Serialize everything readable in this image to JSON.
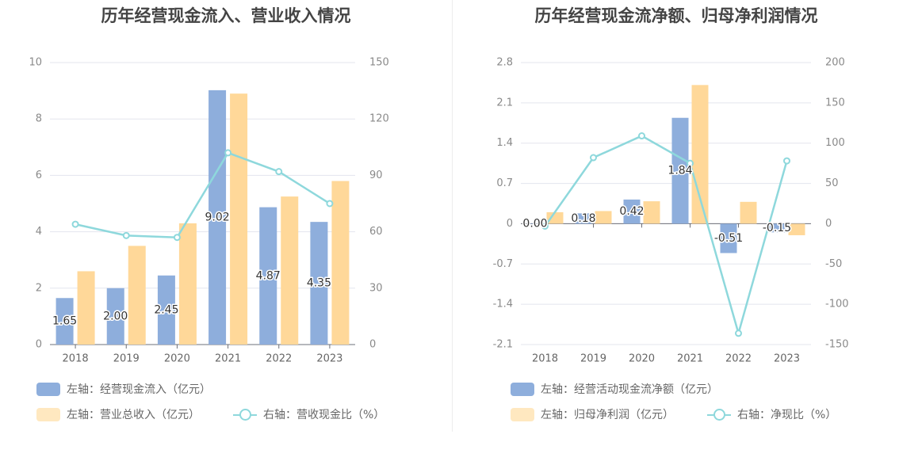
{
  "chart_data": [
    {
      "type": "bar+line",
      "title": "历年经营现金流入、营业收入情况",
      "categories": [
        "2018",
        "2019",
        "2020",
        "2021",
        "2022",
        "2023"
      ],
      "left_axis": {
        "min": 0,
        "max": 10,
        "ticks": [
          "0",
          "2",
          "4",
          "6",
          "8",
          "10"
        ]
      },
      "right_axis": {
        "min": 0,
        "max": 150,
        "ticks": [
          "0",
          "30",
          "60",
          "90",
          "120",
          "150"
        ]
      },
      "series": [
        {
          "name": "左轴：经营现金流入（亿元）",
          "type": "bar",
          "axis": "left",
          "color": "#8eaedc",
          "values": [
            1.65,
            2.0,
            2.45,
            9.02,
            4.87,
            4.35
          ],
          "labels": [
            "1.65",
            "2.00",
            "2.45",
            "9.02",
            "4.87",
            "4.35"
          ]
        },
        {
          "name": "左轴：营业总收入（亿元）",
          "type": "bar",
          "axis": "left",
          "color": "#ffd899",
          "values": [
            2.6,
            3.5,
            4.3,
            8.9,
            5.25,
            5.8
          ]
        },
        {
          "name": "右轴：营收现金比（%）",
          "type": "line",
          "axis": "right",
          "color": "#8ed8dc",
          "values": [
            64,
            58,
            57,
            102,
            92,
            75
          ]
        }
      ],
      "legend": "bottom"
    },
    {
      "type": "bar+line",
      "title": "历年经营现金流净额、归母净利润情况",
      "categories": [
        "2018",
        "2019",
        "2020",
        "2021",
        "2022",
        "2023"
      ],
      "left_axis": {
        "min": -2.1,
        "max": 2.8,
        "ticks": [
          "-2.1",
          "-1.4",
          "-0.7",
          "0",
          "0.7",
          "1.4",
          "2.1",
          "2.8"
        ]
      },
      "right_axis": {
        "min": -150,
        "max": 200,
        "ticks": [
          "-150",
          "-100",
          "-50",
          "0",
          "50",
          "100",
          "150",
          "200"
        ]
      },
      "series": [
        {
          "name": "左轴：经营活动现金流净额（亿元）",
          "type": "bar",
          "axis": "left",
          "color": "#8eaedc",
          "values": [
            0.0,
            0.18,
            0.42,
            1.84,
            -0.51,
            -0.15
          ],
          "labels": [
            "0.00",
            "0.18",
            "0.42",
            "1.84",
            "-0.51",
            "-0.15"
          ]
        },
        {
          "name": "左轴：归母净利润（亿元）",
          "type": "bar",
          "axis": "left",
          "color": "#ffd899",
          "values": [
            0.2,
            0.22,
            0.39,
            2.41,
            0.38,
            -0.2
          ]
        },
        {
          "name": "右轴：净现比（%）",
          "type": "line",
          "axis": "right",
          "color": "#8ed8dc",
          "values": [
            -3,
            82,
            109,
            75,
            -136,
            78
          ]
        }
      ],
      "legend": "bottom"
    }
  ]
}
